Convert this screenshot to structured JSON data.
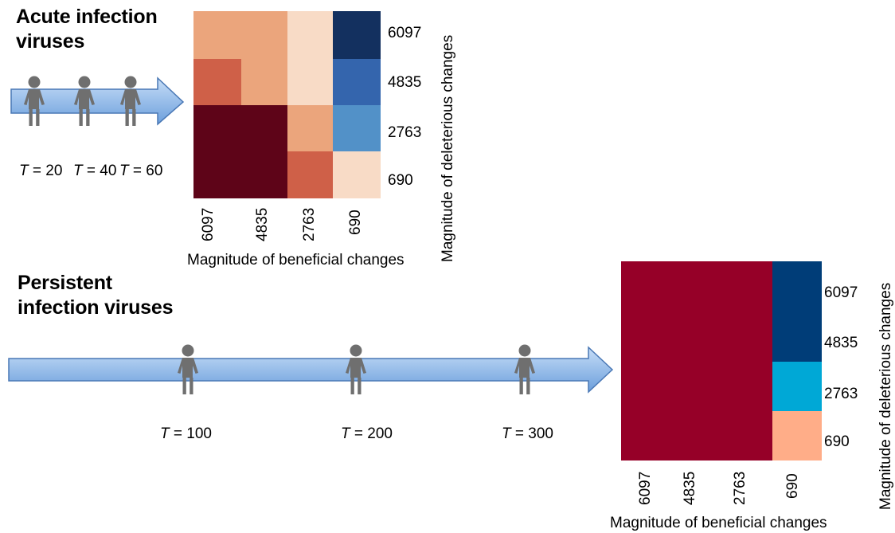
{
  "acute": {
    "title_line1": "Acute infection",
    "title_line2": "viruses",
    "time_labels": [
      {
        "var": "T",
        "value": " = 20"
      },
      {
        "var": "T",
        "value": " = 40"
      },
      {
        "var": "T",
        "value": " = 60"
      }
    ]
  },
  "persistent": {
    "title_line1": "Persistent",
    "title_line2": "infection viruses",
    "time_labels": [
      {
        "var": "T",
        "value": " = 100"
      },
      {
        "var": "T",
        "value": " = 200"
      },
      {
        "var": "T",
        "value": " = 300"
      }
    ]
  },
  "colors": {
    "arrow_fill_top": "#bcd6f5",
    "arrow_fill_bottom": "#6a9edc",
    "arrow_stroke": "#4a78b5",
    "person": "#6f6f6f"
  },
  "chart_data": [
    {
      "type": "heatmap",
      "x_categories": [
        "6097",
        "4835",
        "2763",
        "690"
      ],
      "y_categories": [
        "6097",
        "4835",
        "2763",
        "690"
      ],
      "xlabel": "Magnitude of beneficial changes",
      "ylabel": "Magnitude of deleterious changes",
      "cells": [
        {
          "x": "6097",
          "y": "6097",
          "color": "#eba57c"
        },
        {
          "x": "4835",
          "y": "6097",
          "color": "#eba57c"
        },
        {
          "x": "2763",
          "y": "6097",
          "color": "#f8dbc6"
        },
        {
          "x": "690",
          "y": "6097",
          "color": "#13305f"
        },
        {
          "x": "6097",
          "y": "4835",
          "color": "#cf6048"
        },
        {
          "x": "4835",
          "y": "4835",
          "color": "#eba57c"
        },
        {
          "x": "2763",
          "y": "4835",
          "color": "#f8dbc6"
        },
        {
          "x": "690",
          "y": "4835",
          "color": "#3465ad"
        },
        {
          "x": "6097",
          "y": "2763",
          "color": "#5e0418"
        },
        {
          "x": "4835",
          "y": "2763",
          "color": "#5e0418"
        },
        {
          "x": "2763",
          "y": "2763",
          "color": "#eba57c"
        },
        {
          "x": "690",
          "y": "2763",
          "color": "#5291c8"
        },
        {
          "x": "6097",
          "y": "690",
          "color": "#5e0418"
        },
        {
          "x": "4835",
          "y": "690",
          "color": "#5e0418"
        },
        {
          "x": "2763",
          "y": "690",
          "color": "#cf6048"
        },
        {
          "x": "690",
          "y": "690",
          "color": "#f8dbc6"
        }
      ]
    },
    {
      "type": "heatmap",
      "x_categories": [
        "6097",
        "4835",
        "2763",
        "690"
      ],
      "y_categories": [
        "6097",
        "4835",
        "2763",
        "690"
      ],
      "xlabel": "Magnitude of beneficial changes",
      "ylabel": "Magnitude of deleterious changes",
      "cells": [
        {
          "x": "6097",
          "y": "6097",
          "color": "#960028"
        },
        {
          "x": "4835",
          "y": "6097",
          "color": "#960028"
        },
        {
          "x": "2763",
          "y": "6097",
          "color": "#960028"
        },
        {
          "x": "690",
          "y": "6097",
          "color": "#003d78"
        },
        {
          "x": "6097",
          "y": "4835",
          "color": "#960028"
        },
        {
          "x": "4835",
          "y": "4835",
          "color": "#960028"
        },
        {
          "x": "2763",
          "y": "4835",
          "color": "#960028"
        },
        {
          "x": "690",
          "y": "4835",
          "color": "#003d78"
        },
        {
          "x": "6097",
          "y": "2763",
          "color": "#960028"
        },
        {
          "x": "4835",
          "y": "2763",
          "color": "#960028"
        },
        {
          "x": "2763",
          "y": "2763",
          "color": "#960028"
        },
        {
          "x": "690",
          "y": "2763",
          "color": "#00a8d6"
        },
        {
          "x": "6097",
          "y": "690",
          "color": "#960028"
        },
        {
          "x": "4835",
          "y": "690",
          "color": "#960028"
        },
        {
          "x": "2763",
          "y": "690",
          "color": "#960028"
        },
        {
          "x": "690",
          "y": "690",
          "color": "#ffad88"
        }
      ]
    }
  ]
}
